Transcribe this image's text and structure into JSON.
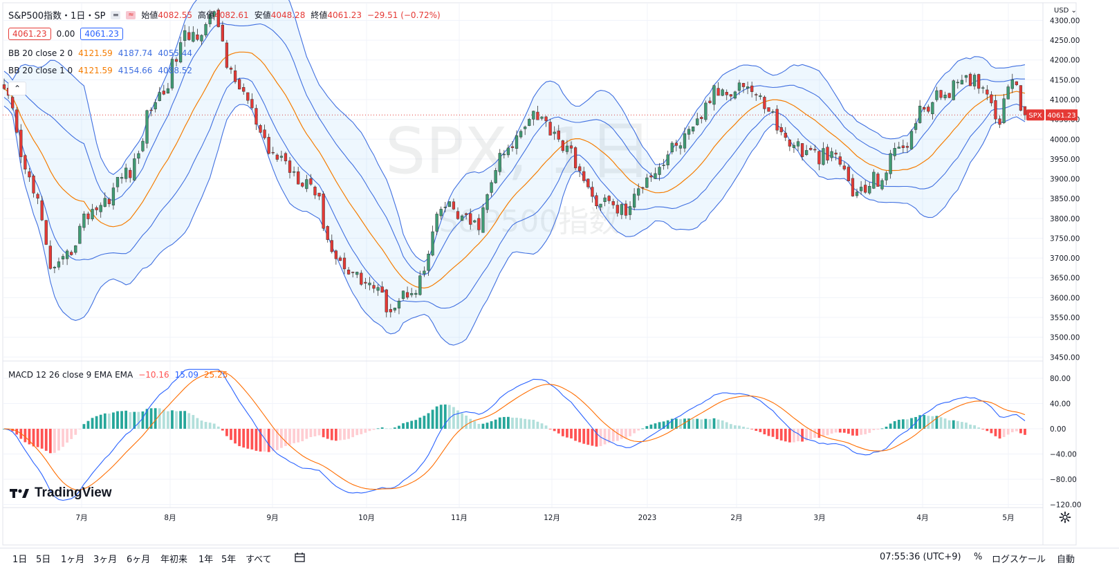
{
  "header": {
    "title": "S&P500指数・1日・SP",
    "ohlc": [
      {
        "label": "始値",
        "value": "4082.55"
      },
      {
        "label": "高値",
        "value": "4082.61"
      },
      {
        "label": "安値",
        "value": "4048.28"
      },
      {
        "label": "終値",
        "value": "4061.23"
      }
    ],
    "change": "−29.51 (−0.72%)",
    "last_box": "4061.23",
    "mid_val": "0.00",
    "last_box2": "4061.23"
  },
  "legends": {
    "bb2": {
      "name": "BB 20 close 2 0",
      "basis": "4121.59",
      "upper": "4187.74",
      "lower": "4055.44"
    },
    "bb1": {
      "name": "BB 20 close 1 0",
      "basis": "4121.59",
      "upper": "4154.66",
      "lower": "4088.52"
    },
    "macd": {
      "name": "MACD 12 26 close 9 EMA EMA",
      "hist": "−10.16",
      "macd": "15.09",
      "signal": "25.25"
    }
  },
  "currency": "USD",
  "watermark": {
    "symbol": "SPX",
    "interval": "1日",
    "name": "S&P500指数"
  },
  "price_axis": [
    "4300.00",
    "4250.00",
    "4200.00",
    "4150.00",
    "4100.00",
    "4050.00",
    "4000.00",
    "3950.00",
    "3900.00",
    "3850.00",
    "3800.00",
    "3750.00",
    "3700.00",
    "3650.00",
    "3600.00",
    "3550.00",
    "3500.00",
    "3450.00"
  ],
  "macd_axis": [
    "80.00",
    "40.00",
    "0.00",
    "−40.00",
    "−80.00",
    "−120.00"
  ],
  "time_axis": [
    "7月",
    "8月",
    "9月",
    "10月",
    "11月",
    "12月",
    "2023",
    "2月",
    "3月",
    "4月",
    "5月"
  ],
  "price_tag": {
    "symbol": "SPX",
    "value": "4061.23"
  },
  "brand": "TradingView",
  "toolbar": {
    "ranges": [
      "1日",
      "5日",
      "1ヶ月",
      "3ヶ月",
      "6ヶ月",
      "年初来",
      "1年",
      "5年",
      "すべて"
    ],
    "clock": "07:55:36 (UTC+9)",
    "percent": "%",
    "log": "ログスケール",
    "auto": "自動"
  },
  "colors": {
    "up": "#26a69a",
    "up_candle": "#3f9c74",
    "down": "#e53935",
    "bb_band": "#3f6fe0",
    "bb_basis": "#f57c00",
    "fill": "#2196f3",
    "macd_line": "#2962ff",
    "signal_line": "#ff6d00",
    "hist_up_strong": "#26a69a",
    "hist_up_weak": "#b2dfdb",
    "hist_down_strong": "#ff5252",
    "hist_down_weak": "#ffcdd2"
  },
  "chart_data": {
    "type": "candlestick",
    "symbol": "SPX",
    "timeframe": "1日",
    "x_ticks": [
      "7月",
      "8月",
      "9月",
      "10月",
      "11月",
      "12月",
      "2023",
      "2月",
      "3月",
      "4月",
      "5月"
    ],
    "ylim": [
      3450,
      4320
    ],
    "close_anchors": [
      {
        "t": 0,
        "v": 4110
      },
      {
        "t": 6,
        "v": 3900
      },
      {
        "t": 12,
        "v": 3666
      },
      {
        "t": 22,
        "v": 3830
      },
      {
        "t": 30,
        "v": 3920
      },
      {
        "t": 36,
        "v": 4100
      },
      {
        "t": 44,
        "v": 4260
      },
      {
        "t": 50,
        "v": 4305
      },
      {
        "t": 55,
        "v": 4140
      },
      {
        "t": 64,
        "v": 3960
      },
      {
        "t": 72,
        "v": 3900
      },
      {
        "t": 80,
        "v": 3690
      },
      {
        "t": 86,
        "v": 3640
      },
      {
        "t": 92,
        "v": 3580
      },
      {
        "t": 98,
        "v": 3630
      },
      {
        "t": 105,
        "v": 3830
      },
      {
        "t": 112,
        "v": 3780
      },
      {
        "t": 119,
        "v": 3960
      },
      {
        "t": 126,
        "v": 4070
      },
      {
        "t": 130,
        "v": 4030
      },
      {
        "t": 135,
        "v": 3960
      },
      {
        "t": 140,
        "v": 3850
      },
      {
        "t": 148,
        "v": 3820
      },
      {
        "t": 154,
        "v": 3920
      },
      {
        "t": 162,
        "v": 4000
      },
      {
        "t": 170,
        "v": 4120
      },
      {
        "t": 176,
        "v": 4140
      },
      {
        "t": 181,
        "v": 4090
      },
      {
        "t": 186,
        "v": 4000
      },
      {
        "t": 192,
        "v": 3960
      },
      {
        "t": 198,
        "v": 3950
      },
      {
        "t": 203,
        "v": 3860
      },
      {
        "t": 208,
        "v": 3900
      },
      {
        "t": 214,
        "v": 3990
      },
      {
        "t": 220,
        "v": 4090
      },
      {
        "t": 226,
        "v": 4130
      },
      {
        "t": 232,
        "v": 4150
      },
      {
        "t": 237,
        "v": 4060
      },
      {
        "t": 240,
        "v": 4170
      },
      {
        "t": 243,
        "v": 4061
      }
    ],
    "bars": 244,
    "last": {
      "open": 4082.55,
      "high": 4082.61,
      "low": 4048.28,
      "close": 4061.23
    },
    "indicators": {
      "bb_2": {
        "length": 20,
        "mult": 2,
        "basis": 4121.59,
        "upper": 4187.74,
        "lower": 4055.44
      },
      "bb_1": {
        "length": 20,
        "mult": 1,
        "basis": 4121.59,
        "upper": 4154.66,
        "lower": 4088.52
      },
      "macd": {
        "fast": 12,
        "slow": 26,
        "signal": 9,
        "hist": -10.16,
        "macd": 15.09,
        "signal_value": 25.25,
        "ylim": [
          -125,
          95
        ]
      }
    }
  }
}
